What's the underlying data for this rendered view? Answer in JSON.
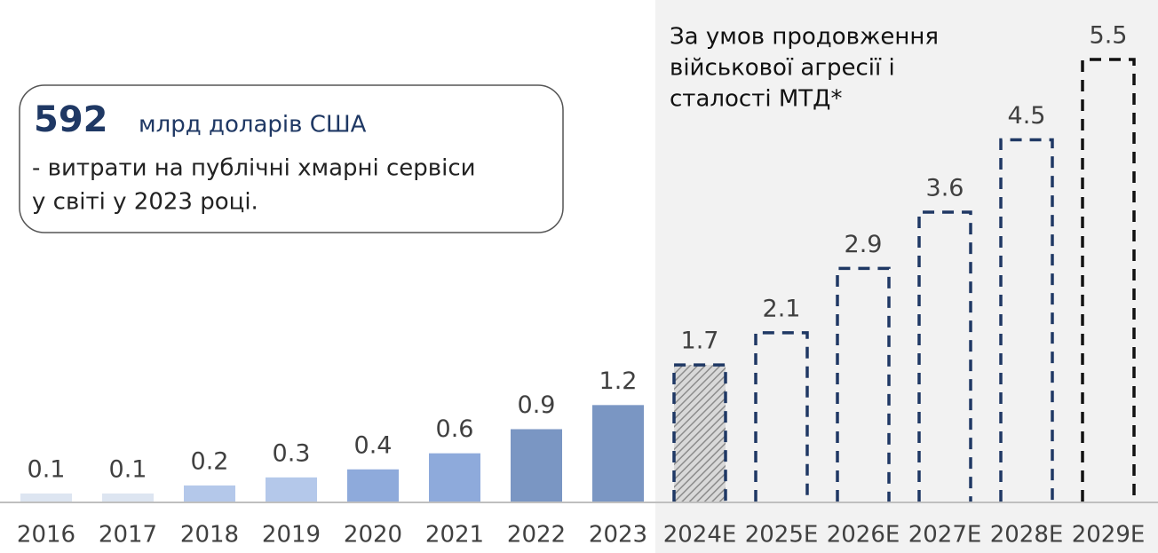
{
  "chart_data": {
    "type": "bar",
    "categories": [
      "2016",
      "2017",
      "2018",
      "2019",
      "2020",
      "2021",
      "2022",
      "2023",
      "2024E",
      "2025E",
      "2026E",
      "2027E",
      "2028E",
      "2029E"
    ],
    "values": [
      0.1,
      0.1,
      0.2,
      0.3,
      0.4,
      0.6,
      0.9,
      1.2,
      1.7,
      2.1,
      2.9,
      3.6,
      4.5,
      5.5
    ],
    "colors": [
      "#dde5f1",
      "#dde5f1",
      "#b4c8ea",
      "#b4c8ea",
      "#8eaadb",
      "#8eaadb",
      "#7a96c3",
      "#7a96c3",
      "#1f3864",
      "#1f3864",
      "#1f3864",
      "#1f3864",
      "#1f3864",
      "#111111"
    ],
    "styles": [
      "solid",
      "solid",
      "solid",
      "solid",
      "solid",
      "solid",
      "solid",
      "solid",
      "hatched",
      "dashed",
      "dashed",
      "dashed",
      "dashed",
      "dashed"
    ],
    "annotation": [
      "За умов продовження",
      "військової агресії і",
      "сталості МТД*"
    ],
    "callout": {
      "value": "592",
      "unit": "млрд доларів США",
      "lines": [
        "- витрати на публічні хмарні сервіси",
        "у світі у 2023 році."
      ]
    }
  }
}
